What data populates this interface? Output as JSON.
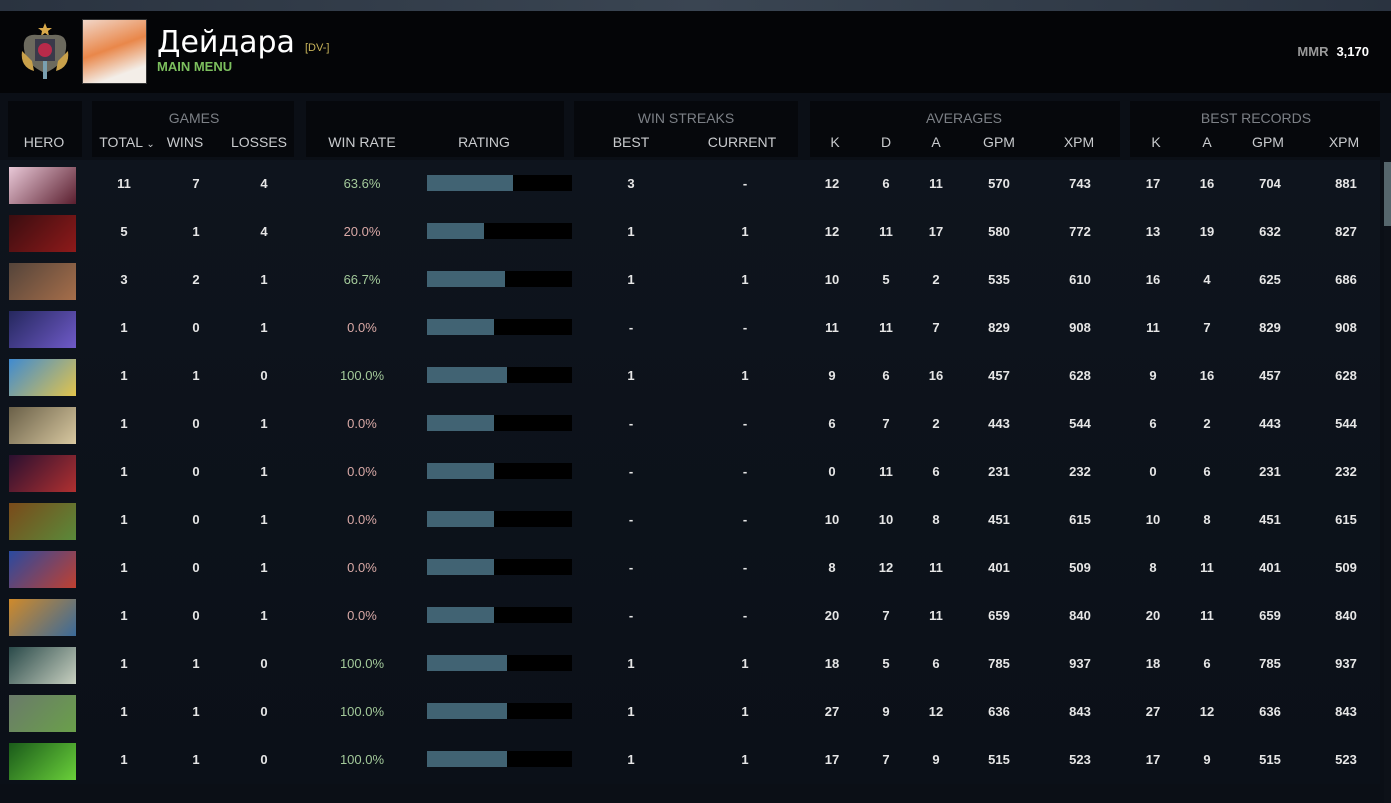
{
  "header": {
    "player_name": "Дейдара",
    "team_tag": "[DV-]",
    "menu_label": "MAIN MENU",
    "mmr_label": "MMR",
    "mmr_value": "3,170"
  },
  "groups": {
    "games": "GAMES",
    "win_streaks": "WIN STREAKS",
    "averages": "AVERAGES",
    "best_records": "BEST RECORDS"
  },
  "columns": {
    "hero": "HERO",
    "total": "TOTAL",
    "wins": "WINS",
    "losses": "LOSSES",
    "win_rate": "WIN RATE",
    "rating": "RATING",
    "best": "BEST",
    "current": "CURRENT",
    "k": "K",
    "d": "D",
    "a": "A",
    "gpm": "GPM",
    "xpm": "XPM",
    "bk": "K",
    "ba": "A",
    "bgpm": "GPM",
    "bxpm": "XPM"
  },
  "sort": {
    "column": "total",
    "direction": "descending",
    "icon": "chevron-down-icon"
  },
  "colors": {
    "win_rate_good": "#a3c99a",
    "win_rate_bad": "#d9a9a6",
    "rating_fill": "#416373",
    "menu": "#7cbf5e",
    "tag": "#c8b45a"
  },
  "rows": [
    {
      "hero_colors": [
        "#e9c9d8",
        "#5a1e2e"
      ],
      "total": "11",
      "wins": "7",
      "losses": "4",
      "win_rate": "63.6%",
      "rating": 0.59,
      "best": "3",
      "current": "-",
      "k": "12",
      "d": "6",
      "a": "11",
      "gpm": "570",
      "xpm": "743",
      "bk": "17",
      "ba": "16",
      "bgpm": "704",
      "bxpm": "881"
    },
    {
      "hero_colors": [
        "#3a0d10",
        "#8e1a1a"
      ],
      "total": "5",
      "wins": "1",
      "losses": "4",
      "win_rate": "20.0%",
      "rating": 0.39,
      "best": "1",
      "current": "1",
      "k": "12",
      "d": "11",
      "a": "17",
      "gpm": "580",
      "xpm": "772",
      "bk": "13",
      "ba": "19",
      "bgpm": "632",
      "bxpm": "827"
    },
    {
      "hero_colors": [
        "#54443a",
        "#a66e4a"
      ],
      "total": "3",
      "wins": "2",
      "losses": "1",
      "win_rate": "66.7%",
      "rating": 0.54,
      "best": "1",
      "current": "1",
      "k": "10",
      "d": "5",
      "a": "2",
      "gpm": "535",
      "xpm": "610",
      "bk": "16",
      "ba": "4",
      "bgpm": "625",
      "bxpm": "686"
    },
    {
      "hero_colors": [
        "#25285e",
        "#6f5ac8"
      ],
      "total": "1",
      "wins": "0",
      "losses": "1",
      "win_rate": "0.0%",
      "rating": 0.46,
      "best": "-",
      "current": "-",
      "k": "11",
      "d": "11",
      "a": "7",
      "gpm": "829",
      "xpm": "908",
      "bk": "11",
      "ba": "7",
      "bgpm": "829",
      "bxpm": "908"
    },
    {
      "hero_colors": [
        "#3f8ad0",
        "#e2c44c"
      ],
      "total": "1",
      "wins": "1",
      "losses": "0",
      "win_rate": "100.0%",
      "rating": 0.55,
      "best": "1",
      "current": "1",
      "k": "9",
      "d": "6",
      "a": "16",
      "gpm": "457",
      "xpm": "628",
      "bk": "9",
      "ba": "16",
      "bgpm": "457",
      "bxpm": "628"
    },
    {
      "hero_colors": [
        "#6a6048",
        "#d8c8a0"
      ],
      "total": "1",
      "wins": "0",
      "losses": "1",
      "win_rate": "0.0%",
      "rating": 0.46,
      "best": "-",
      "current": "-",
      "k": "6",
      "d": "7",
      "a": "2",
      "gpm": "443",
      "xpm": "544",
      "bk": "6",
      "ba": "2",
      "bgpm": "443",
      "bxpm": "544"
    },
    {
      "hero_colors": [
        "#2a1030",
        "#b03030"
      ],
      "total": "1",
      "wins": "0",
      "losses": "1",
      "win_rate": "0.0%",
      "rating": 0.46,
      "best": "-",
      "current": "-",
      "k": "0",
      "d": "11",
      "a": "6",
      "gpm": "231",
      "xpm": "232",
      "bk": "0",
      "ba": "6",
      "bgpm": "231",
      "bxpm": "232"
    },
    {
      "hero_colors": [
        "#7a4a1a",
        "#5a8a3a"
      ],
      "total": "1",
      "wins": "0",
      "losses": "1",
      "win_rate": "0.0%",
      "rating": 0.46,
      "best": "-",
      "current": "-",
      "k": "10",
      "d": "10",
      "a": "8",
      "gpm": "451",
      "xpm": "615",
      "bk": "10",
      "ba": "8",
      "bgpm": "451",
      "bxpm": "615"
    },
    {
      "hero_colors": [
        "#2a4aa0",
        "#c04030"
      ],
      "total": "1",
      "wins": "0",
      "losses": "1",
      "win_rate": "0.0%",
      "rating": 0.46,
      "best": "-",
      "current": "-",
      "k": "8",
      "d": "12",
      "a": "11",
      "gpm": "401",
      "xpm": "509",
      "bk": "8",
      "ba": "11",
      "bgpm": "401",
      "bxpm": "509"
    },
    {
      "hero_colors": [
        "#d08a2a",
        "#3a6a9a"
      ],
      "total": "1",
      "wins": "0",
      "losses": "1",
      "win_rate": "0.0%",
      "rating": 0.46,
      "best": "-",
      "current": "-",
      "k": "20",
      "d": "7",
      "a": "11",
      "gpm": "659",
      "xpm": "840",
      "bk": "20",
      "ba": "11",
      "bgpm": "659",
      "bxpm": "840"
    },
    {
      "hero_colors": [
        "#2a4a4a",
        "#c8d0c0"
      ],
      "total": "1",
      "wins": "1",
      "losses": "0",
      "win_rate": "100.0%",
      "rating": 0.55,
      "best": "1",
      "current": "1",
      "k": "18",
      "d": "5",
      "a": "6",
      "gpm": "785",
      "xpm": "937",
      "bk": "18",
      "ba": "6",
      "bgpm": "785",
      "bxpm": "937"
    },
    {
      "hero_colors": [
        "#6a7a6a",
        "#6aa04a"
      ],
      "total": "1",
      "wins": "1",
      "losses": "0",
      "win_rate": "100.0%",
      "rating": 0.55,
      "best": "1",
      "current": "1",
      "k": "27",
      "d": "9",
      "a": "12",
      "gpm": "636",
      "xpm": "843",
      "bk": "27",
      "ba": "12",
      "bgpm": "636",
      "bxpm": "843"
    },
    {
      "hero_colors": [
        "#1a5a1a",
        "#6ad03a"
      ],
      "total": "1",
      "wins": "1",
      "losses": "0",
      "win_rate": "100.0%",
      "rating": 0.55,
      "best": "1",
      "current": "1",
      "k": "17",
      "d": "7",
      "a": "9",
      "gpm": "515",
      "xpm": "523",
      "bk": "17",
      "ba": "9",
      "bgpm": "515",
      "bxpm": "523"
    }
  ]
}
